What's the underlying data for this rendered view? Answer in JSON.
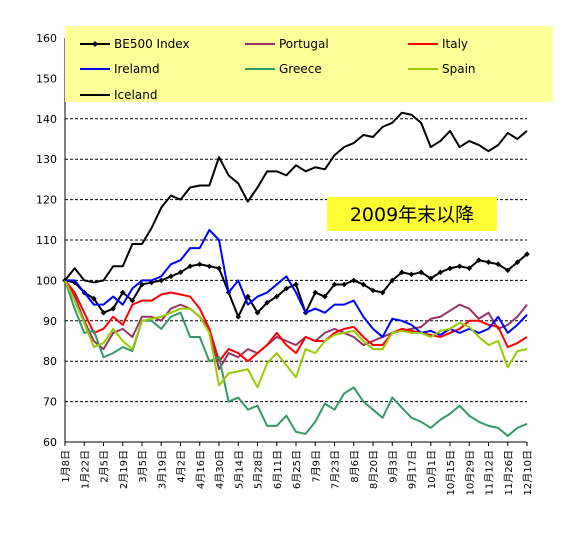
{
  "chart_data": {
    "type": "line",
    "title": "",
    "xlabel": "",
    "ylabel": "",
    "ylim": [
      60,
      160
    ],
    "yticks": [
      60,
      70,
      80,
      90,
      100,
      110,
      120,
      130,
      140,
      150,
      160
    ],
    "grid": "horizontal-dashed",
    "legend_position": "top",
    "annotation": {
      "text": "2009年末以降",
      "background": "#ffff33"
    },
    "x_tick_labels": [
      "1月8日",
      "1月22日",
      "2月5日",
      "2月19日",
      "3月5日",
      "3月19日",
      "4月2日",
      "4月16日",
      "4月30日",
      "5月14日",
      "5月28日",
      "6月11日",
      "6月25日",
      "7月9日",
      "7月23日",
      "8月6日",
      "8月20日",
      "9月3日",
      "9月17日",
      "10月1日",
      "10月15日",
      "10月29日",
      "11月12日",
      "11月26日",
      "12月10日"
    ],
    "n_points": 49,
    "tick_every": 2,
    "legend_bg": "#ffff99",
    "series": [
      {
        "name": "BE500 Index",
        "color": "#000000",
        "marker": "diamond",
        "values": [
          100,
          99.5,
          97,
          95.5,
          92,
          93,
          97,
          95,
          99,
          99.5,
          100,
          101,
          102,
          103.5,
          104,
          103.5,
          103,
          97,
          91,
          96,
          92,
          94.5,
          96,
          98,
          99,
          92,
          97,
          96,
          99,
          99,
          100,
          99,
          97.5,
          97,
          100,
          102,
          101.5,
          102,
          100.5,
          102,
          103,
          103.5,
          103,
          105,
          104.5,
          104,
          102.5,
          104.5,
          106.5
        ]
      },
      {
        "name": "Portugal",
        "color": "#993366",
        "values": [
          100,
          96,
          90,
          85,
          83,
          87,
          88,
          86,
          91,
          91,
          90,
          93,
          94,
          93,
          91,
          88,
          78,
          82,
          81,
          83,
          82,
          84,
          86,
          85,
          84,
          86,
          85,
          87,
          88,
          87,
          86,
          84,
          85,
          86,
          87,
          87.5,
          88,
          88.5,
          90.5,
          91,
          92.5,
          94,
          93,
          90.5,
          92,
          88,
          89,
          91,
          94
        ]
      },
      {
        "name": "Italy",
        "color": "#ff0000",
        "values": [
          100,
          97,
          92,
          87,
          88,
          91,
          89,
          94,
          95,
          95,
          96.5,
          97,
          96.5,
          96,
          93,
          88,
          80,
          83,
          82,
          80,
          82,
          84,
          87,
          84,
          82,
          86,
          85,
          85,
          87,
          88,
          88.5,
          86,
          84,
          84,
          87,
          88,
          87.5,
          87,
          86.5,
          86,
          87,
          88,
          90,
          90,
          89,
          88.5,
          83.5,
          84.5,
          86
        ]
      },
      {
        "name": "Irelamd",
        "color": "#0000ff",
        "values": [
          100,
          100,
          97,
          94,
          94,
          96,
          94,
          98,
          100,
          100,
          101,
          104,
          105,
          108,
          108,
          112.5,
          110,
          97,
          100,
          94,
          96,
          97,
          99,
          101,
          97,
          92,
          93,
          92,
          94,
          94,
          95,
          91,
          88,
          86,
          90.5,
          90,
          89,
          87,
          87.5,
          86.5,
          88,
          87,
          88,
          87,
          88,
          91,
          87,
          89,
          91.5
        ]
      },
      {
        "name": "Greece",
        "color": "#339966",
        "values": [
          100,
          93,
          87,
          87.5,
          81,
          82,
          83.5,
          82.5,
          90,
          90,
          88,
          91,
          92,
          86,
          86,
          80,
          81,
          70,
          71,
          68,
          69,
          64,
          64,
          66.5,
          62.5,
          62,
          65,
          69.5,
          68,
          72,
          73.5,
          70,
          68,
          66,
          71,
          68.5,
          66,
          65,
          63.5,
          65.5,
          67,
          69,
          66.5,
          65,
          64,
          63.5,
          61.5,
          63.5,
          64.5
        ]
      },
      {
        "name": "Spain",
        "color": "#99cc00",
        "values": [
          100,
          95,
          89.5,
          83.5,
          84.5,
          88,
          85,
          83,
          90,
          90.5,
          91,
          92,
          93,
          93,
          91,
          87,
          74,
          77,
          77.5,
          78,
          73.5,
          79.5,
          82,
          79,
          76,
          83,
          82,
          85,
          86.5,
          87,
          87.5,
          85,
          83,
          83,
          87,
          87.5,
          87,
          87,
          86,
          87.5,
          88,
          89.5,
          88.5,
          86,
          84,
          85,
          78.5,
          82.5,
          83
        ]
      },
      {
        "name": "Iceland",
        "color": "#000000",
        "values": [
          100,
          103,
          100,
          99.5,
          100,
          103.5,
          103.5,
          109,
          109,
          113,
          118,
          121,
          120,
          123,
          123.5,
          123.5,
          130.5,
          126,
          124,
          119.5,
          123,
          127,
          127,
          126,
          128.5,
          127,
          128,
          127.5,
          131,
          133,
          134,
          136,
          135.5,
          138,
          139,
          141.5,
          141,
          139,
          133,
          134.5,
          137,
          133,
          134.5,
          133.5,
          132,
          133.5,
          136.5,
          135,
          137
        ]
      }
    ]
  }
}
